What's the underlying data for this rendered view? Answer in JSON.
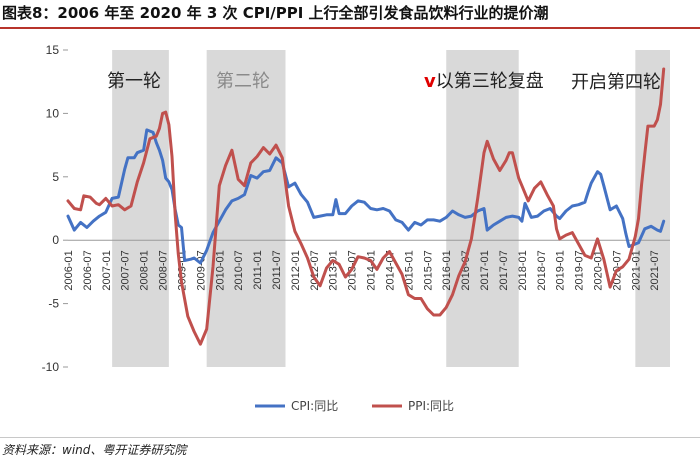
{
  "header": {
    "title": "图表8：2006 年至 2020 年 3 次 CPI/PPI 上行全部引发食品饮料行业的提价潮"
  },
  "footer": {
    "source": "资料来源：wind、粤开证券研究院"
  },
  "chart_data": {
    "type": "line",
    "title": "图表8：2006 年至 2020 年 3 次 CPI/PPI 上行全部引发食品饮料行业的提价潮",
    "xlabel": "",
    "ylabel": "",
    "ylim": [
      -10,
      15
    ],
    "yticks": [
      15,
      10,
      5,
      0,
      -5,
      -10
    ],
    "xlim": [
      "2006-01",
      "2021-12"
    ],
    "grid": false,
    "legend": "bottom",
    "colors": {
      "cpi": "#4472c4",
      "ppi": "#c0504d",
      "shade": "#d9d9d9",
      "annotation_mark": "#e00000"
    },
    "xticks": [
      "2006-01",
      "2006-07",
      "2007-01",
      "2007-07",
      "2008-01",
      "2008-07",
      "2009-01",
      "2009-07",
      "2010-01",
      "2010-07",
      "2011-01",
      "2011-07",
      "2012-01",
      "2012-07",
      "2013-01",
      "2013-07",
      "2014-01",
      "2014-07",
      "2015-01",
      "2015-07",
      "2016-01",
      "2016-07",
      "2017-01",
      "2017-07",
      "2018-01",
      "2018-07",
      "2019-01",
      "2019-07",
      "2020-01",
      "2020-07",
      "2021-01",
      "2021-07"
    ],
    "shaded_periods": [
      {
        "label": "第一轮",
        "start": "2007-03",
        "end": "2008-09"
      },
      {
        "label": "第二轮",
        "start": "2009-09",
        "end": "2011-10"
      },
      {
        "label": "以第三轮复盘",
        "mark": "v",
        "start": "2016-01",
        "end": "2017-12"
      },
      {
        "label": "开启第四轮",
        "start": "2021-01",
        "end": "2021-12"
      }
    ],
    "series": [
      {
        "name": "CPI:同比",
        "key": "cpi",
        "points": [
          [
            "2006-01",
            1.9
          ],
          [
            "2006-03",
            0.8
          ],
          [
            "2006-05",
            1.4
          ],
          [
            "2006-07",
            1.0
          ],
          [
            "2006-09",
            1.5
          ],
          [
            "2006-11",
            1.9
          ],
          [
            "2007-01",
            2.2
          ],
          [
            "2007-03",
            3.3
          ],
          [
            "2007-05",
            3.4
          ],
          [
            "2007-07",
            5.6
          ],
          [
            "2007-08",
            6.5
          ],
          [
            "2007-10",
            6.5
          ],
          [
            "2007-11",
            6.9
          ],
          [
            "2008-01",
            7.1
          ],
          [
            "2008-02",
            8.7
          ],
          [
            "2008-04",
            8.5
          ],
          [
            "2008-05",
            7.7
          ],
          [
            "2008-06",
            7.1
          ],
          [
            "2008-07",
            6.3
          ],
          [
            "2008-08",
            4.9
          ],
          [
            "2008-09",
            4.6
          ],
          [
            "2008-10",
            4.0
          ],
          [
            "2008-11",
            2.4
          ],
          [
            "2008-12",
            1.2
          ],
          [
            "2009-01",
            1.0
          ],
          [
            "2009-02",
            -1.6
          ],
          [
            "2009-04",
            -1.5
          ],
          [
            "2009-05",
            -1.4
          ],
          [
            "2009-07",
            -1.8
          ],
          [
            "2009-09",
            -0.8
          ],
          [
            "2009-11",
            0.6
          ],
          [
            "2010-01",
            1.5
          ],
          [
            "2010-03",
            2.4
          ],
          [
            "2010-05",
            3.1
          ],
          [
            "2010-07",
            3.3
          ],
          [
            "2010-09",
            3.6
          ],
          [
            "2010-11",
            5.1
          ],
          [
            "2011-01",
            4.9
          ],
          [
            "2011-03",
            5.4
          ],
          [
            "2011-05",
            5.5
          ],
          [
            "2011-07",
            6.5
          ],
          [
            "2011-09",
            6.1
          ],
          [
            "2011-11",
            4.2
          ],
          [
            "2012-01",
            4.5
          ],
          [
            "2012-03",
            3.6
          ],
          [
            "2012-05",
            3.0
          ],
          [
            "2012-07",
            1.8
          ],
          [
            "2012-09",
            1.9
          ],
          [
            "2012-11",
            2.0
          ],
          [
            "2013-01",
            2.0
          ],
          [
            "2013-02",
            3.2
          ],
          [
            "2013-03",
            2.1
          ],
          [
            "2013-05",
            2.1
          ],
          [
            "2013-07",
            2.7
          ],
          [
            "2013-09",
            3.1
          ],
          [
            "2013-11",
            3.0
          ],
          [
            "2014-01",
            2.5
          ],
          [
            "2014-03",
            2.4
          ],
          [
            "2014-05",
            2.5
          ],
          [
            "2014-07",
            2.3
          ],
          [
            "2014-09",
            1.6
          ],
          [
            "2014-11",
            1.4
          ],
          [
            "2015-01",
            0.8
          ],
          [
            "2015-03",
            1.4
          ],
          [
            "2015-05",
            1.2
          ],
          [
            "2015-07",
            1.6
          ],
          [
            "2015-09",
            1.6
          ],
          [
            "2015-11",
            1.5
          ],
          [
            "2016-01",
            1.8
          ],
          [
            "2016-03",
            2.3
          ],
          [
            "2016-05",
            2.0
          ],
          [
            "2016-07",
            1.8
          ],
          [
            "2016-09",
            1.9
          ],
          [
            "2016-11",
            2.3
          ],
          [
            "2017-01",
            2.5
          ],
          [
            "2017-02",
            0.8
          ],
          [
            "2017-04",
            1.2
          ],
          [
            "2017-06",
            1.5
          ],
          [
            "2017-08",
            1.8
          ],
          [
            "2017-10",
            1.9
          ],
          [
            "2017-12",
            1.8
          ],
          [
            "2018-01",
            1.5
          ],
          [
            "2018-02",
            2.9
          ],
          [
            "2018-04",
            1.8
          ],
          [
            "2018-06",
            1.9
          ],
          [
            "2018-08",
            2.3
          ],
          [
            "2018-10",
            2.5
          ],
          [
            "2018-12",
            1.9
          ],
          [
            "2019-01",
            1.7
          ],
          [
            "2019-03",
            2.3
          ],
          [
            "2019-05",
            2.7
          ],
          [
            "2019-07",
            2.8
          ],
          [
            "2019-09",
            3.0
          ],
          [
            "2019-10",
            3.8
          ],
          [
            "2019-11",
            4.5
          ],
          [
            "2020-01",
            5.4
          ],
          [
            "2020-02",
            5.2
          ],
          [
            "2020-03",
            4.3
          ],
          [
            "2020-05",
            2.4
          ],
          [
            "2020-07",
            2.7
          ],
          [
            "2020-09",
            1.7
          ],
          [
            "2020-10",
            0.5
          ],
          [
            "2020-11",
            -0.5
          ],
          [
            "2021-01",
            -0.3
          ],
          [
            "2021-02",
            -0.2
          ],
          [
            "2021-04",
            0.9
          ],
          [
            "2021-06",
            1.1
          ],
          [
            "2021-08",
            0.8
          ],
          [
            "2021-09",
            0.7
          ],
          [
            "2021-10",
            1.5
          ]
        ]
      },
      {
        "name": "PPI:同比",
        "key": "ppi",
        "points": [
          [
            "2006-01",
            3.1
          ],
          [
            "2006-03",
            2.5
          ],
          [
            "2006-05",
            2.4
          ],
          [
            "2006-06",
            3.5
          ],
          [
            "2006-08",
            3.4
          ],
          [
            "2006-10",
            2.9
          ],
          [
            "2006-11",
            2.8
          ],
          [
            "2007-01",
            3.3
          ],
          [
            "2007-03",
            2.7
          ],
          [
            "2007-05",
            2.8
          ],
          [
            "2007-07",
            2.4
          ],
          [
            "2007-09",
            2.7
          ],
          [
            "2007-11",
            4.6
          ],
          [
            "2008-01",
            6.1
          ],
          [
            "2008-03",
            8.0
          ],
          [
            "2008-05",
            8.2
          ],
          [
            "2008-06",
            8.8
          ],
          [
            "2008-07",
            10.0
          ],
          [
            "2008-08",
            10.1
          ],
          [
            "2008-09",
            9.1
          ],
          [
            "2008-10",
            6.6
          ],
          [
            "2008-11",
            2.0
          ],
          [
            "2008-12",
            -1.1
          ],
          [
            "2009-01",
            -3.3
          ],
          [
            "2009-03",
            -6.0
          ],
          [
            "2009-05",
            -7.2
          ],
          [
            "2009-07",
            -8.2
          ],
          [
            "2009-09",
            -7.0
          ],
          [
            "2009-11",
            -2.1
          ],
          [
            "2010-01",
            4.3
          ],
          [
            "2010-03",
            5.9
          ],
          [
            "2010-05",
            7.1
          ],
          [
            "2010-07",
            4.8
          ],
          [
            "2010-09",
            4.3
          ],
          [
            "2010-11",
            6.1
          ],
          [
            "2011-01",
            6.6
          ],
          [
            "2011-03",
            7.3
          ],
          [
            "2011-05",
            6.8
          ],
          [
            "2011-07",
            7.5
          ],
          [
            "2011-09",
            6.5
          ],
          [
            "2011-11",
            2.7
          ],
          [
            "2012-01",
            0.7
          ],
          [
            "2012-03",
            -0.3
          ],
          [
            "2012-05",
            -1.4
          ],
          [
            "2012-07",
            -2.9
          ],
          [
            "2012-09",
            -3.6
          ],
          [
            "2012-11",
            -2.2
          ],
          [
            "2013-01",
            -1.6
          ],
          [
            "2013-03",
            -1.9
          ],
          [
            "2013-05",
            -2.9
          ],
          [
            "2013-07",
            -2.3
          ],
          [
            "2013-09",
            -1.3
          ],
          [
            "2013-11",
            -1.4
          ],
          [
            "2014-01",
            -1.6
          ],
          [
            "2014-03",
            -2.3
          ],
          [
            "2014-05",
            -1.4
          ],
          [
            "2014-07",
            -0.9
          ],
          [
            "2014-09",
            -1.8
          ],
          [
            "2014-11",
            -2.7
          ],
          [
            "2015-01",
            -4.3
          ],
          [
            "2015-03",
            -4.6
          ],
          [
            "2015-05",
            -4.6
          ],
          [
            "2015-07",
            -5.4
          ],
          [
            "2015-09",
            -5.9
          ],
          [
            "2015-11",
            -5.9
          ],
          [
            "2016-01",
            -5.3
          ],
          [
            "2016-03",
            -4.3
          ],
          [
            "2016-05",
            -2.8
          ],
          [
            "2016-07",
            -1.7
          ],
          [
            "2016-09",
            0.1
          ],
          [
            "2016-11",
            3.3
          ],
          [
            "2017-01",
            6.9
          ],
          [
            "2017-02",
            7.8
          ],
          [
            "2017-04",
            6.4
          ],
          [
            "2017-06",
            5.5
          ],
          [
            "2017-08",
            6.3
          ],
          [
            "2017-09",
            6.9
          ],
          [
            "2017-10",
            6.9
          ],
          [
            "2017-12",
            4.9
          ],
          [
            "2018-01",
            4.3
          ],
          [
            "2018-03",
            3.1
          ],
          [
            "2018-05",
            4.1
          ],
          [
            "2018-07",
            4.6
          ],
          [
            "2018-09",
            3.6
          ],
          [
            "2018-11",
            2.7
          ],
          [
            "2018-12",
            0.9
          ],
          [
            "2019-01",
            0.1
          ],
          [
            "2019-03",
            0.4
          ],
          [
            "2019-05",
            0.6
          ],
          [
            "2019-07",
            -0.3
          ],
          [
            "2019-09",
            -1.2
          ],
          [
            "2019-11",
            -1.4
          ],
          [
            "2020-01",
            0.1
          ],
          [
            "2020-03",
            -1.5
          ],
          [
            "2020-05",
            -3.7
          ],
          [
            "2020-07",
            -2.4
          ],
          [
            "2020-09",
            -2.1
          ],
          [
            "2020-11",
            -1.5
          ],
          [
            "2021-01",
            0.3
          ],
          [
            "2021-02",
            1.7
          ],
          [
            "2021-03",
            4.4
          ],
          [
            "2021-04",
            6.8
          ],
          [
            "2021-05",
            9.0
          ],
          [
            "2021-07",
            9.0
          ],
          [
            "2021-08",
            9.5
          ],
          [
            "2021-09",
            10.7
          ],
          [
            "2021-10",
            13.5
          ]
        ]
      }
    ]
  }
}
